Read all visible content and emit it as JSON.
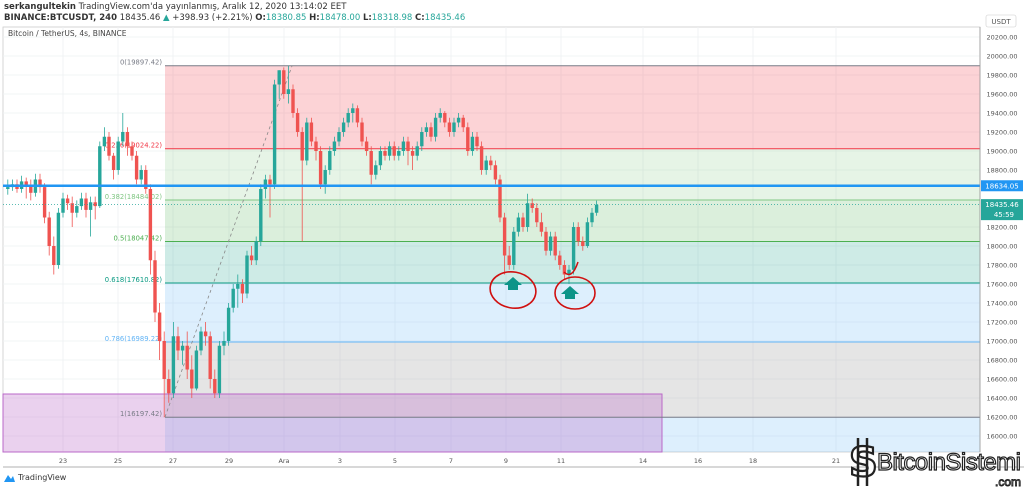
{
  "header": {
    "author": "serkangultekin",
    "published": "TradingView.com'da yayınlanmış, Aralık 12, 2020 13:14:02 EET",
    "symbol": "BINANCE:BTCUSDT, 240",
    "last": "18435.46",
    "change": "+398.93 (+2.21%)",
    "o_label": "O:",
    "o": "18380.85",
    "h_label": "H:",
    "h": "18478.00",
    "l_label": "L:",
    "l": "18318.98",
    "c_label": "C:",
    "c": "18435.46"
  },
  "chart": {
    "legend": "Bitcoin / TetherUS, 4s, BINANCE",
    "currency": "USDT",
    "price_ticks": [
      "20200.00",
      "20000.00",
      "19800.00",
      "19600.00",
      "19400.00",
      "19200.00",
      "19000.00",
      "18800.00",
      "18200.00",
      "18000.00",
      "17800.00",
      "17600.00",
      "17400.00",
      "17200.00",
      "17000.00",
      "16800.00",
      "16600.00",
      "16400.00",
      "16200.00",
      "16000.00"
    ],
    "date_ticks": [
      "23",
      "25",
      "27",
      "29",
      "Ara",
      "3",
      "5",
      "7",
      "9",
      "11",
      "14",
      "16",
      "18",
      "21"
    ],
    "hline_label": "18634.05",
    "last_price_label": "18435.46",
    "countdown": "45:59",
    "colors": {
      "up": "#26a69a",
      "down": "#ef5350",
      "hline": "#2196f3",
      "last": "#26a69a"
    },
    "fib": [
      {
        "label": "0(19897.42)",
        "price": 19897.42,
        "color": "#787b86"
      },
      {
        "label": "0.236(19024.22)",
        "price": 19024.22,
        "color": "#f23645"
      },
      {
        "label": "0.382(18484.02)",
        "price": 18484.02,
        "color": "#81c784"
      },
      {
        "label": "0.5(18047.42)",
        "price": 18047.42,
        "color": "#4caf50"
      },
      {
        "label": "0.618(17610.82)",
        "price": 17610.82,
        "color": "#089981"
      },
      {
        "label": "0.786(16989.22)",
        "price": 16989.22,
        "color": "#64b5f6"
      },
      {
        "label": "1(16197.42)",
        "price": 16197.42,
        "color": "#787b86"
      }
    ],
    "candles_note_interval": "4s",
    "ohlc": [
      [
        18600,
        18700,
        18540,
        18620
      ],
      [
        18620,
        18700,
        18580,
        18650
      ],
      [
        18650,
        18700,
        18560,
        18600
      ],
      [
        18600,
        18740,
        18560,
        18680
      ],
      [
        18680,
        18720,
        18500,
        18640
      ],
      [
        18640,
        18700,
        18480,
        18560
      ],
      [
        18560,
        18760,
        18520,
        18700
      ],
      [
        18700,
        18760,
        18560,
        18620
      ],
      [
        18620,
        18660,
        18240,
        18300
      ],
      [
        18300,
        18360,
        17900,
        18000
      ],
      [
        18000,
        18100,
        17700,
        17800
      ],
      [
        17800,
        18400,
        17760,
        18350
      ],
      [
        18350,
        18560,
        18300,
        18500
      ],
      [
        18500,
        18540,
        18380,
        18450
      ],
      [
        18450,
        18520,
        18200,
        18350
      ],
      [
        18350,
        18480,
        18300,
        18420
      ],
      [
        18420,
        18560,
        18380,
        18500
      ],
      [
        18500,
        18560,
        18300,
        18380
      ],
      [
        18380,
        18520,
        18100,
        18460
      ],
      [
        18460,
        18520,
        18280,
        18420
      ],
      [
        18420,
        19100,
        18400,
        19050
      ],
      [
        19050,
        19250,
        19000,
        19150
      ],
      [
        19150,
        19200,
        18900,
        18950
      ],
      [
        18950,
        18980,
        18700,
        18800
      ],
      [
        18800,
        19150,
        18750,
        19100
      ],
      [
        19100,
        19400,
        19050,
        19200
      ],
      [
        19200,
        19250,
        18950,
        19050
      ],
      [
        19050,
        19100,
        18900,
        18950
      ],
      [
        18950,
        19000,
        18650,
        18700
      ],
      [
        18700,
        18850,
        18650,
        18800
      ],
      [
        18800,
        18850,
        18550,
        18600
      ],
      [
        18600,
        18650,
        17700,
        17850
      ],
      [
        17850,
        17950,
        17200,
        17300
      ],
      [
        17300,
        17400,
        16800,
        17000
      ],
      [
        17000,
        17100,
        16197,
        16600
      ],
      [
        16600,
        16700,
        16350,
        16450
      ],
      [
        16450,
        17200,
        16400,
        17050
      ],
      [
        17050,
        17150,
        16800,
        16900
      ],
      [
        16900,
        17000,
        16750,
        16950
      ],
      [
        16950,
        17100,
        16600,
        16700
      ],
      [
        16700,
        16850,
        16400,
        16500
      ],
      [
        16500,
        16950,
        16480,
        16900
      ],
      [
        16900,
        17150,
        16850,
        17100
      ],
      [
        17100,
        17200,
        16950,
        17050
      ],
      [
        17050,
        17100,
        16500,
        16600
      ],
      [
        16600,
        16700,
        16400,
        16450
      ],
      [
        16450,
        17000,
        16400,
        16950
      ],
      [
        16950,
        17100,
        16850,
        17000
      ],
      [
        17000,
        17400,
        16950,
        17350
      ],
      [
        17350,
        17600,
        17300,
        17550
      ],
      [
        17550,
        17700,
        17350,
        17600
      ],
      [
        17600,
        17650,
        17400,
        17500
      ],
      [
        17500,
        17950,
        17450,
        17900
      ],
      [
        17900,
        18000,
        17800,
        17850
      ],
      [
        17850,
        18100,
        17800,
        18050
      ],
      [
        18050,
        18650,
        18000,
        18600
      ],
      [
        18600,
        18750,
        18500,
        18700
      ],
      [
        18700,
        18750,
        18300,
        18650
      ],
      [
        18650,
        19750,
        18600,
        19700
      ],
      [
        19700,
        19850,
        19550,
        19850
      ],
      [
        19850,
        19880,
        19550,
        19600
      ],
      [
        19600,
        19897,
        19500,
        19650
      ],
      [
        19650,
        19700,
        19350,
        19400
      ],
      [
        19400,
        19450,
        19150,
        19200
      ],
      [
        19200,
        19250,
        18050,
        18900
      ],
      [
        18900,
        19350,
        18850,
        19300
      ],
      [
        19300,
        19350,
        19050,
        19100
      ],
      [
        19100,
        19150,
        18900,
        19000
      ],
      [
        19000,
        19050,
        18600,
        18650
      ],
      [
        18650,
        18850,
        18550,
        18800
      ],
      [
        18800,
        19050,
        18750,
        19000
      ],
      [
        19000,
        19150,
        18950,
        19100
      ],
      [
        19100,
        19250,
        19050,
        19200
      ],
      [
        19200,
        19350,
        19150,
        19300
      ],
      [
        19300,
        19450,
        19250,
        19400
      ],
      [
        19400,
        19500,
        19300,
        19450
      ],
      [
        19450,
        19480,
        19250,
        19300
      ],
      [
        19300,
        19350,
        19050,
        19100
      ],
      [
        19100,
        19150,
        18950,
        19000
      ],
      [
        19000,
        19050,
        18650,
        18750
      ],
      [
        18750,
        18900,
        18700,
        18850
      ],
      [
        18850,
        19050,
        18800,
        19000
      ],
      [
        19000,
        19050,
        18900,
        18950
      ],
      [
        18950,
        19100,
        18900,
        19050
      ],
      [
        19050,
        19100,
        18900,
        18950
      ],
      [
        18950,
        19050,
        18900,
        19000
      ],
      [
        19000,
        19150,
        18950,
        19100
      ],
      [
        19100,
        19150,
        18850,
        19000
      ],
      [
        19000,
        19050,
        18800,
        18950
      ],
      [
        18950,
        19100,
        18900,
        19050
      ],
      [
        19050,
        19250,
        19000,
        19200
      ],
      [
        19200,
        19300,
        19150,
        19250
      ],
      [
        19250,
        19300,
        19100,
        19150
      ],
      [
        19150,
        19400,
        19100,
        19350
      ],
      [
        19350,
        19450,
        19300,
        19400
      ],
      [
        19400,
        19420,
        19250,
        19300
      ],
      [
        19300,
        19350,
        19150,
        19200
      ],
      [
        19200,
        19350,
        19150,
        19300
      ],
      [
        19300,
        19400,
        19250,
        19350
      ],
      [
        19350,
        19380,
        19200,
        19250
      ],
      [
        19250,
        19300,
        18950,
        19000
      ],
      [
        19000,
        19200,
        18950,
        19150
      ],
      [
        19150,
        19200,
        19000,
        19050
      ],
      [
        19050,
        19100,
        18750,
        18800
      ],
      [
        18800,
        18950,
        18750,
        18900
      ],
      [
        18900,
        18950,
        18800,
        18850
      ],
      [
        18850,
        18900,
        18650,
        18700
      ],
      [
        18700,
        18750,
        18250,
        18300
      ],
      [
        18300,
        18350,
        17700,
        17900
      ],
      [
        17900,
        18000,
        17750,
        17800
      ],
      [
        17800,
        18200,
        17750,
        18150
      ],
      [
        18150,
        18350,
        18100,
        18300
      ],
      [
        18300,
        18350,
        18150,
        18200
      ],
      [
        18200,
        18550,
        18150,
        18450
      ],
      [
        18450,
        18500,
        18350,
        18400
      ],
      [
        18400,
        18450,
        18200,
        18250
      ],
      [
        18250,
        18350,
        18100,
        18150
      ],
      [
        18150,
        18200,
        17900,
        17950
      ],
      [
        17950,
        18150,
        17900,
        18100
      ],
      [
        18100,
        18150,
        17850,
        17900
      ],
      [
        17900,
        17950,
        17750,
        17800
      ],
      [
        17800,
        17850,
        17650,
        17700
      ],
      [
        17700,
        17800,
        17600,
        17750
      ],
      [
        17750,
        18250,
        17700,
        18200
      ],
      [
        18200,
        18250,
        18000,
        18050
      ],
      [
        18050,
        18100,
        17950,
        18000
      ],
      [
        18000,
        18300,
        17980,
        18250
      ],
      [
        18250,
        18400,
        18200,
        18350
      ],
      [
        18350,
        18478,
        18318,
        18435
      ]
    ]
  },
  "footer": {
    "brand": "TradingView"
  },
  "watermark": {
    "name": "BitcoinSistemi",
    "tld": ".com"
  }
}
